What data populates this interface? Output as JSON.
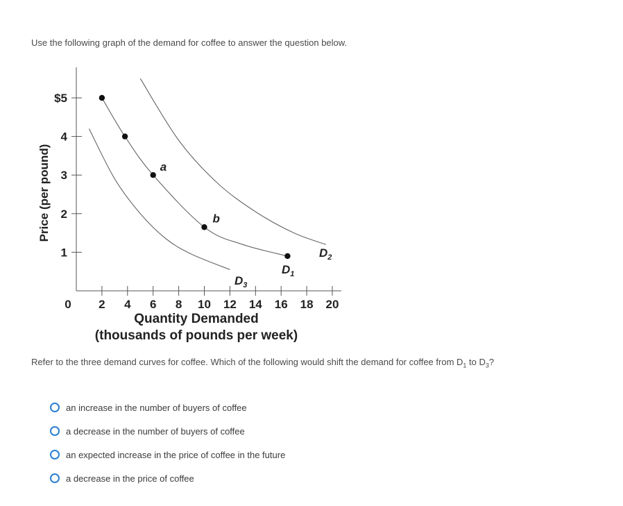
{
  "intro_text": "Use the following graph of the demand for coffee to answer the question below.",
  "question": {
    "prefix": "Refer to the three demand curves for coffee. Which of the following would shift the demand for coffee from D",
    "sub1": "1",
    "middle": " to D",
    "sub2": "3",
    "suffix": "?"
  },
  "options": [
    {
      "label": "an increase in the number of buyers of coffee"
    },
    {
      "label": "a decrease in the number of buyers of coffee"
    },
    {
      "label": "an expected increase in the price of coffee in the future"
    },
    {
      "label": "a decrease in the price of coffee"
    }
  ],
  "colors": {
    "radio": "#2a7fd4",
    "curve": "#555555",
    "axis": "#555555",
    "text": "#222222"
  },
  "chart_data": {
    "type": "line",
    "ylabel": "Price (per pound)",
    "xlabel": "Quantity Demanded",
    "xlabel2": "(thousands of pounds per week)",
    "xlim": [
      0,
      20
    ],
    "ylim": [
      0,
      5.8
    ],
    "xticks": [
      {
        "v": 2,
        "label": "2"
      },
      {
        "v": 4,
        "label": "4"
      },
      {
        "v": 6,
        "label": "6"
      },
      {
        "v": 8,
        "label": "8"
      },
      {
        "v": 10,
        "label": "10"
      },
      {
        "v": 12,
        "label": "12"
      },
      {
        "v": 14,
        "label": "14"
      },
      {
        "v": 16,
        "label": "16"
      },
      {
        "v": 18,
        "label": "18"
      },
      {
        "v": 20,
        "label": "20"
      }
    ],
    "yticks": [
      {
        "v": 1,
        "label": "1"
      },
      {
        "v": 2,
        "label": "2"
      },
      {
        "v": 3,
        "label": "3"
      },
      {
        "v": 4,
        "label": "4"
      },
      {
        "v": 5,
        "label": "$5"
      }
    ],
    "origin_label": "0",
    "series": [
      {
        "name": "D1",
        "label_main": "D",
        "label_sub": "1",
        "x": [
          2,
          3.8,
          6,
          10,
          13,
          16.5
        ],
        "y": [
          5,
          4,
          3,
          1.65,
          1.2,
          0.9
        ]
      },
      {
        "name": "D2",
        "label_main": "D",
        "label_sub": "2",
        "x": [
          5,
          8,
          11,
          14,
          17,
          19.5
        ],
        "y": [
          5.5,
          3.9,
          2.8,
          2.05,
          1.5,
          1.2
        ]
      },
      {
        "name": "D3",
        "label_main": "D",
        "label_sub": "3",
        "x": [
          1,
          3,
          5,
          7,
          9,
          12
        ],
        "y": [
          4.2,
          2.9,
          2.0,
          1.35,
          0.95,
          0.55
        ]
      }
    ],
    "points": [
      {
        "x": 2,
        "y": 5,
        "label": ""
      },
      {
        "x": 3.8,
        "y": 4,
        "label": ""
      },
      {
        "x": 6,
        "y": 3,
        "label": "a"
      },
      {
        "x": 10,
        "y": 1.65,
        "label": "b"
      },
      {
        "x": 16.5,
        "y": 0.9,
        "label": ""
      }
    ]
  }
}
